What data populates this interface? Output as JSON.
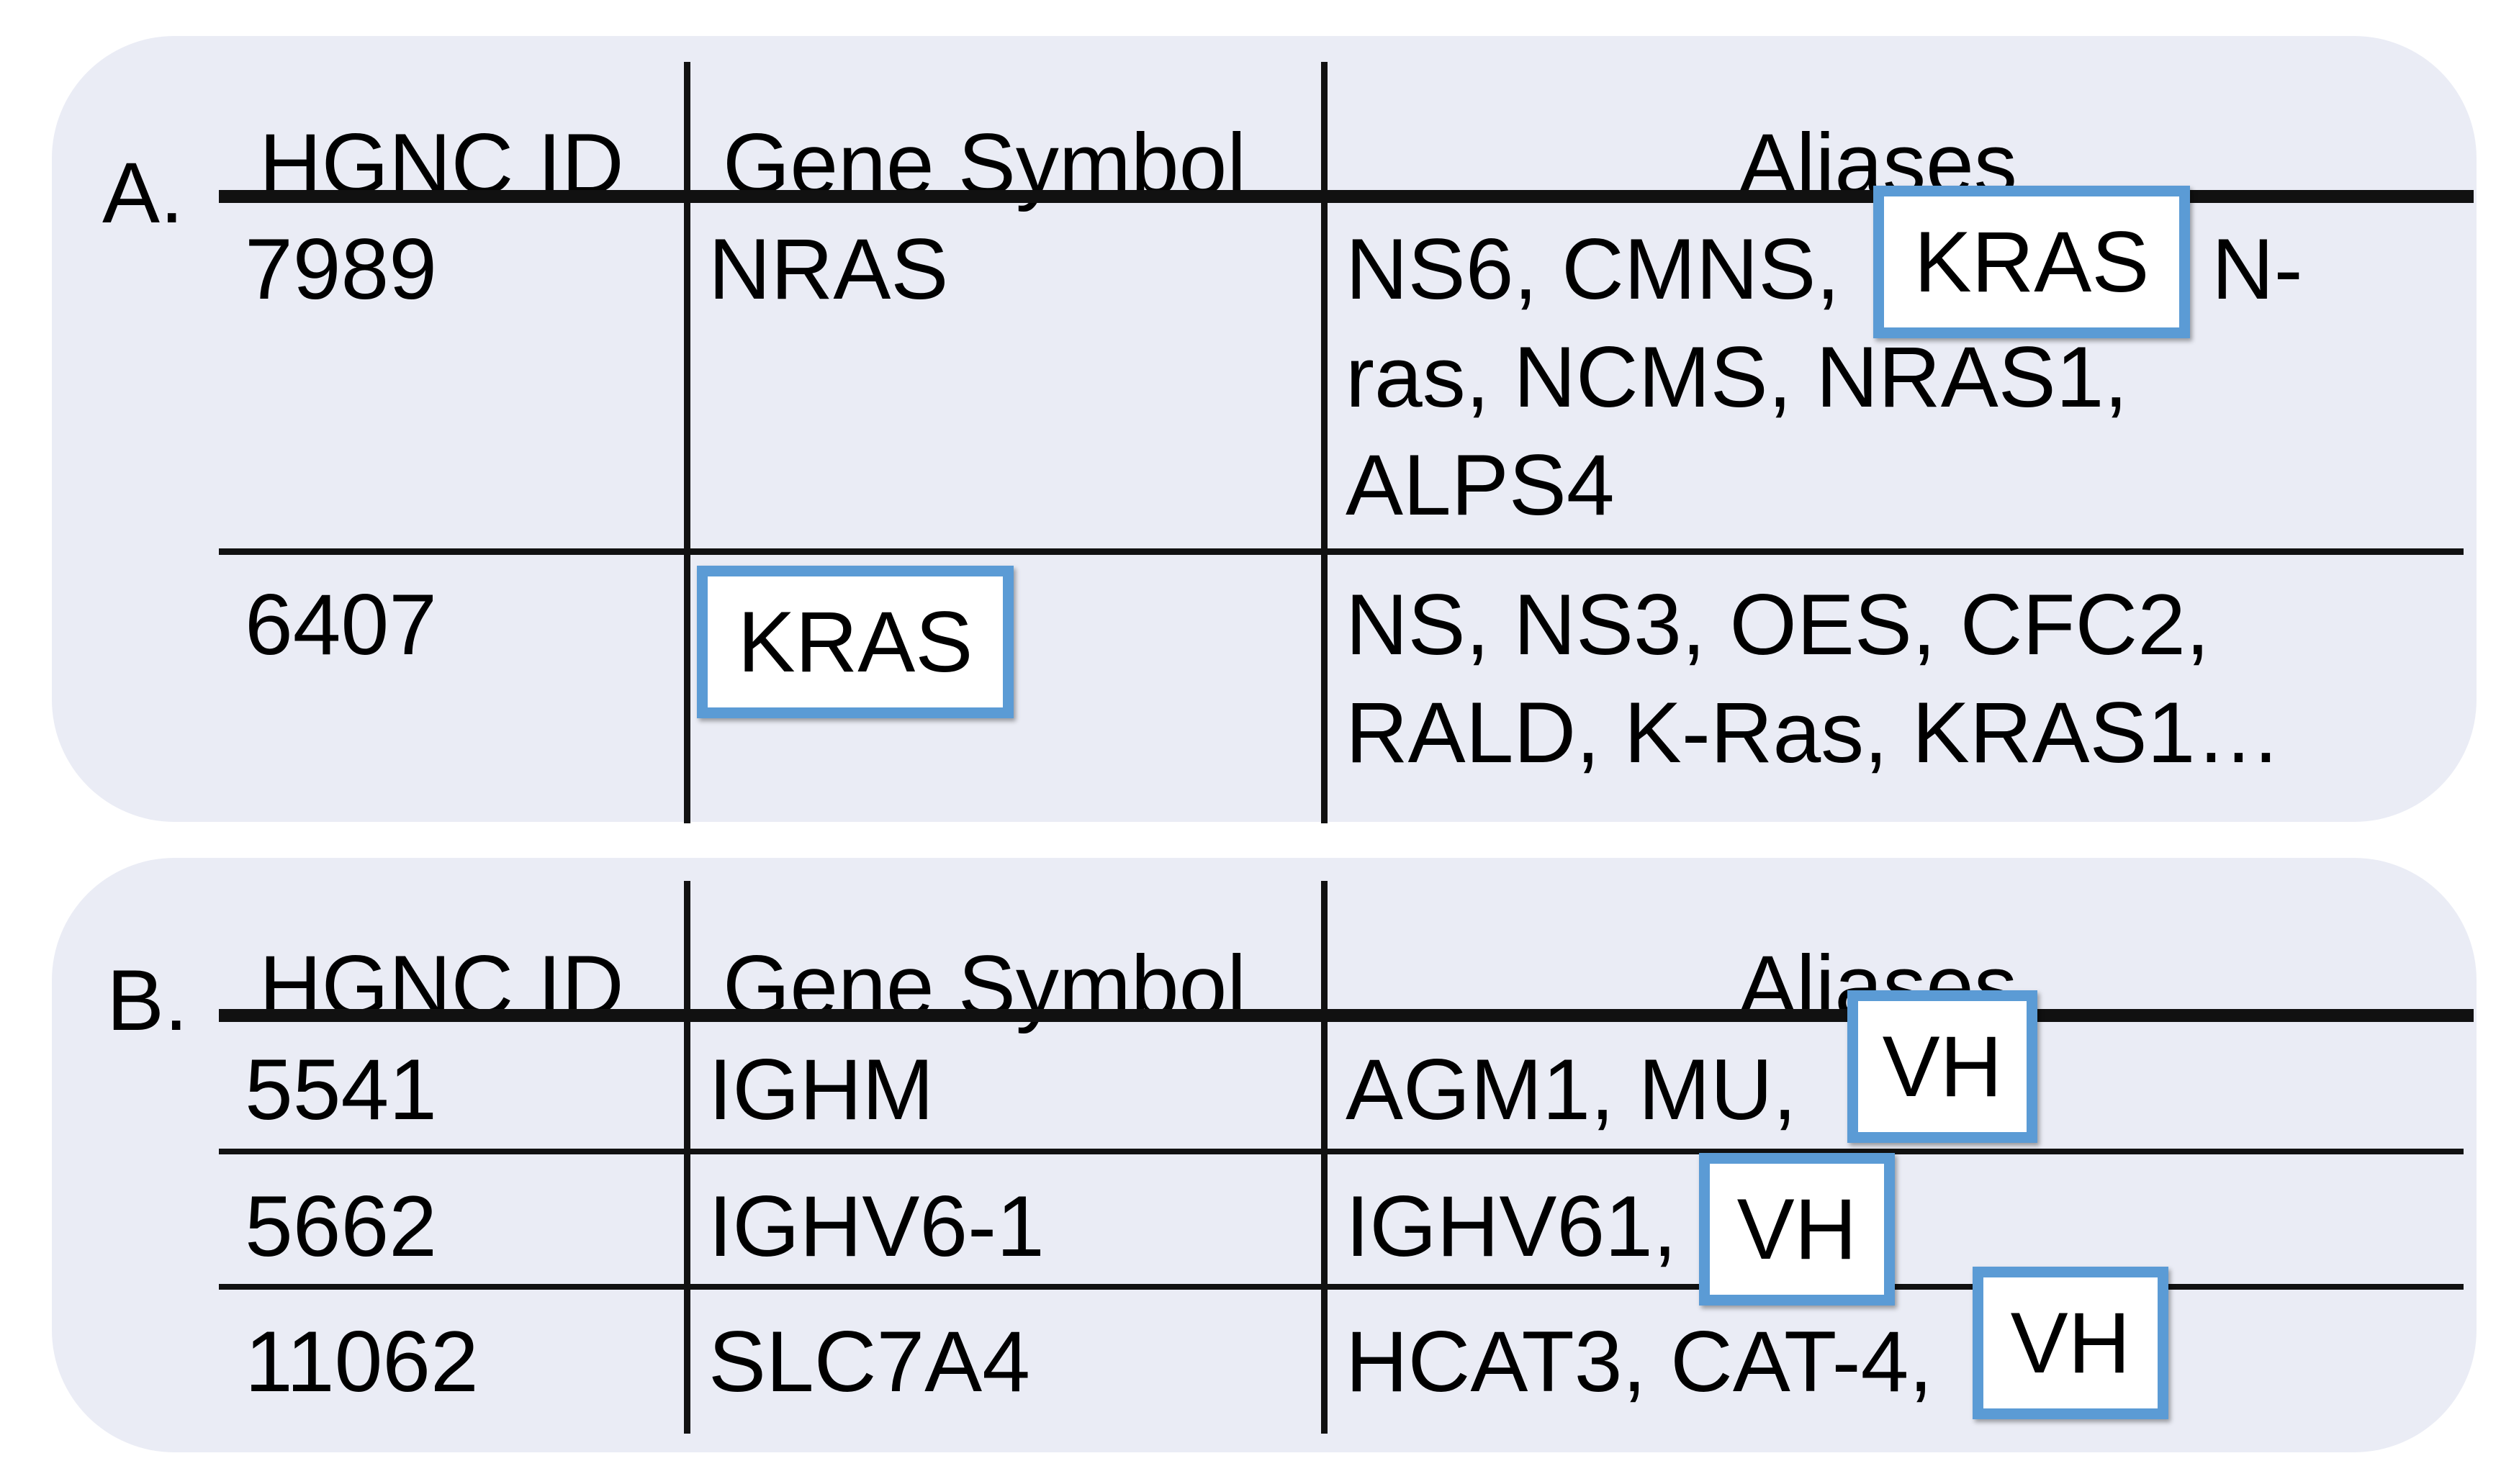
{
  "colors": {
    "panel_bg": "#eaecf5",
    "highlight_border": "#5b9bd5",
    "rule": "#111111"
  },
  "panels": [
    {
      "label": "A.",
      "headers": {
        "id": "HGNC ID",
        "symbol": "Gene Symbol",
        "aliases": "Aliases"
      },
      "rows": [
        {
          "id": "7989",
          "symbol": "NRAS",
          "aliases": {
            "line1_before": "NS6, CMNS,",
            "line1_highlight": "KRAS",
            "line1_after": "N-",
            "line2": "ras, NCMS, NRAS1,",
            "line3": "ALPS4"
          }
        },
        {
          "id": "6407",
          "symbol": "KRAS",
          "symbol_highlighted": true,
          "aliases": {
            "line1": "NS, NS3, OES, CFC2,",
            "line2": "RALD, K-Ras, KRAS1…"
          }
        }
      ]
    },
    {
      "label": "B.",
      "headers": {
        "id": "HGNC ID",
        "symbol": "Gene Symbol",
        "aliases": "Aliases"
      },
      "rows": [
        {
          "id": "5541",
          "symbol": "IGHM",
          "aliases_before": "AGM1, MU,",
          "aliases_highlight": "VH"
        },
        {
          "id": "5662",
          "symbol": "IGHV6-1",
          "aliases_before": "IGHV61,",
          "aliases_highlight": "VH"
        },
        {
          "id": "11062",
          "symbol": "SLC7A4",
          "aliases_before": "HCAT3, CAT-4,",
          "aliases_highlight": "VH"
        }
      ]
    }
  ]
}
